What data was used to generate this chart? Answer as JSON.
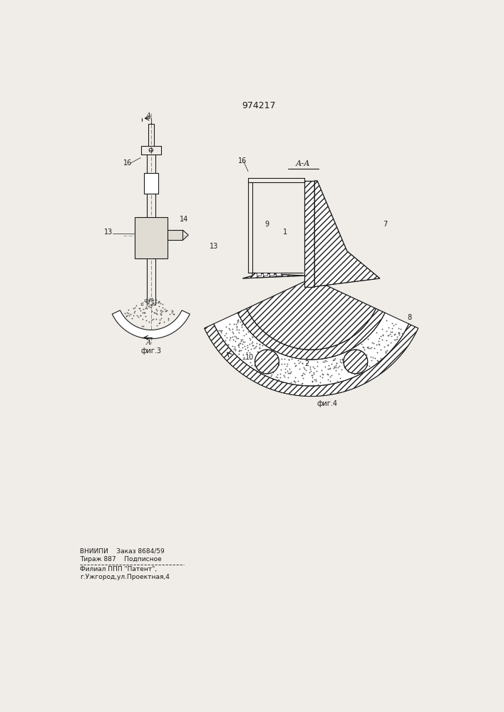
{
  "title": "974217",
  "bg_color": "#f0ede8",
  "line_color": "#1a1a1a",
  "footer_line1": "ВНИИПИ    Заказ 8684/59",
  "footer_line2": "Тираж 887    Подписное",
  "footer_line3": "Филиал ППП \"Патент\",",
  "footer_line4": "г.Ужгород,ул.Проектная,4",
  "fig3_label": "фиг.3",
  "fig4_label": "фиг.4",
  "section_label": "А-А"
}
